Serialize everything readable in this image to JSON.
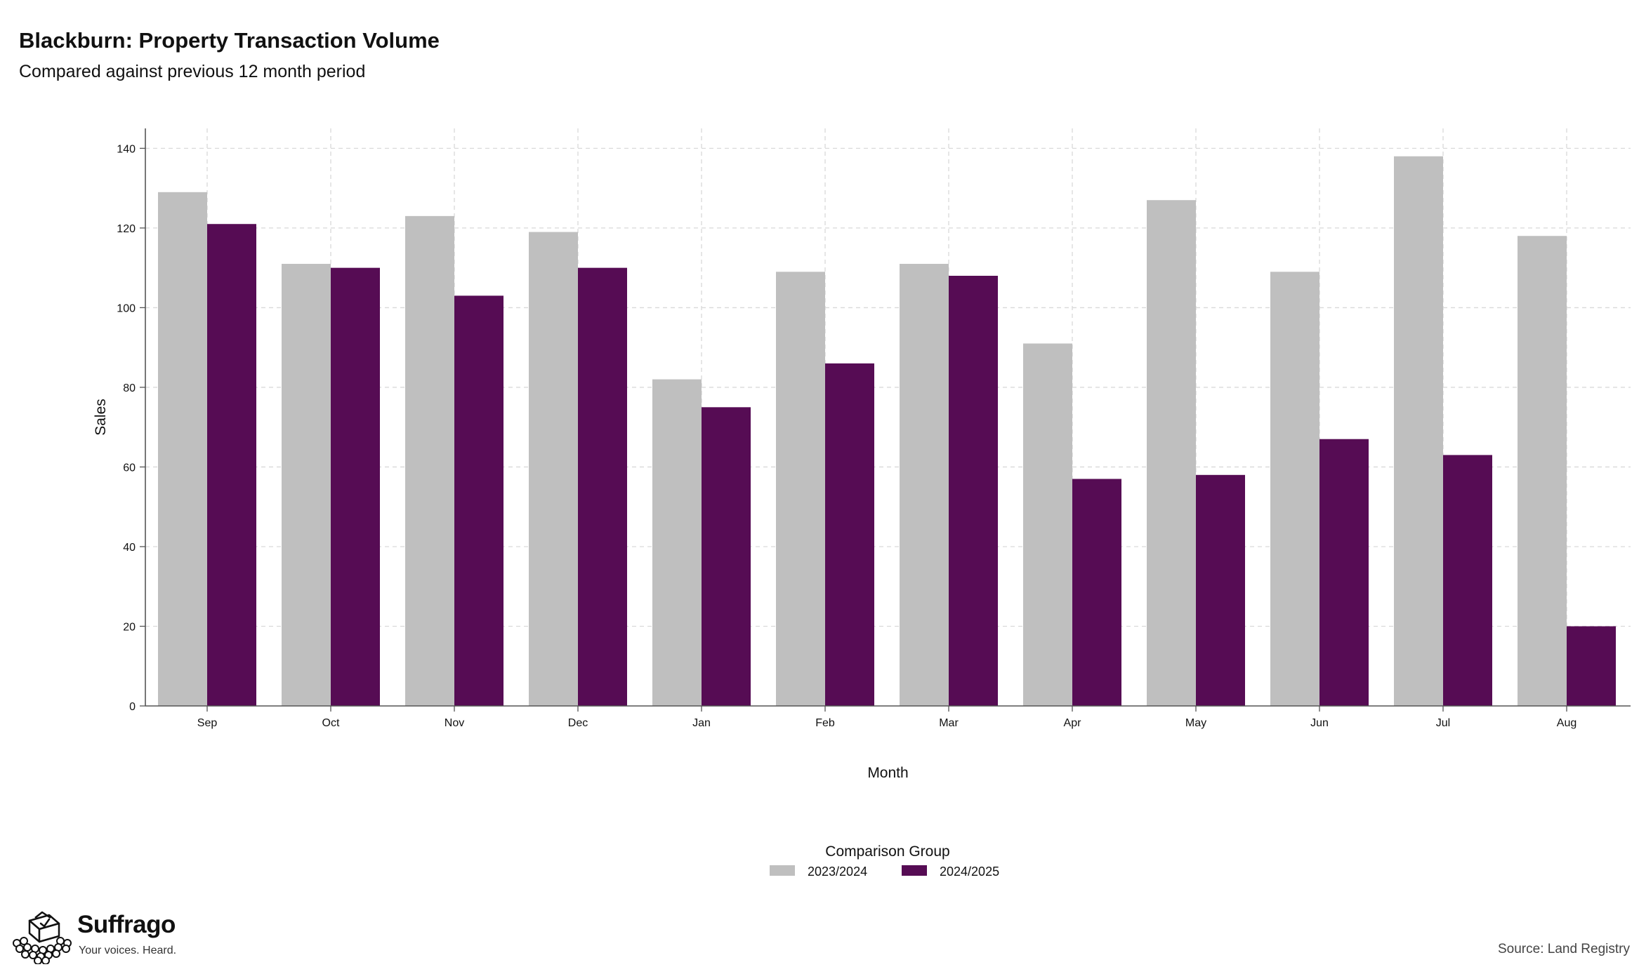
{
  "brand": {
    "name": "Suffrago",
    "tagline": "Your voices. Heard."
  },
  "source": "Source: Land Registry",
  "colors": {
    "series_2023_2024": "#bfbfbf",
    "series_2024_2025": "#560c54",
    "grid": "#d9d9d9",
    "axis": "#555555"
  },
  "chart_data": {
    "type": "bar",
    "title": "Blackburn: Property Transaction Volume",
    "subtitle": "Compared against previous 12 month period",
    "xlabel": "Month",
    "ylabel": "Sales",
    "ylim": [
      0,
      145
    ],
    "yticks": [
      0,
      20,
      40,
      60,
      80,
      100,
      120,
      140
    ],
    "grid": true,
    "legend": {
      "title": "Comparison Group",
      "placement": "bottom-center"
    },
    "categories": [
      "Sep",
      "Oct",
      "Nov",
      "Dec",
      "Jan",
      "Feb",
      "Mar",
      "Apr",
      "May",
      "Jun",
      "Jul",
      "Aug"
    ],
    "series": [
      {
        "name": "2023/2024",
        "color": "#bfbfbf",
        "values": [
          129,
          111,
          123,
          119,
          82,
          109,
          111,
          91,
          127,
          109,
          138,
          118
        ]
      },
      {
        "name": "2024/2025",
        "color": "#560c54",
        "values": [
          121,
          110,
          103,
          110,
          75,
          86,
          108,
          57,
          58,
          67,
          63,
          20
        ]
      }
    ]
  }
}
